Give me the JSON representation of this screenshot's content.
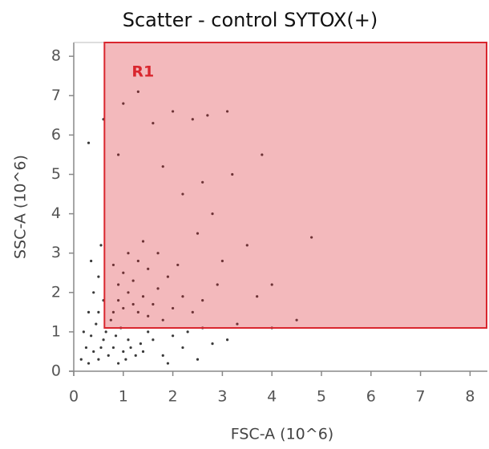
{
  "chart_data": {
    "type": "scatter",
    "title": "Scatter - control SYTOX(+)",
    "x_label": "FSC-A (10^6)",
    "y_label": "SSC-A (10^6)",
    "xlim": [
      0,
      8.35
    ],
    "ylim": [
      0,
      8.35
    ],
    "xticks": [
      0,
      1,
      2,
      3,
      4,
      5,
      6,
      7,
      8
    ],
    "yticks": [
      0,
      1,
      2,
      3,
      4,
      5,
      6,
      7,
      8
    ],
    "series": [
      {
        "color": "#3a3a3a",
        "x": [
          0.3,
          0.4,
          0.5,
          0.6,
          0.7,
          0.8,
          0.9,
          1.0,
          1.1,
          0.35,
          0.45,
          0.55,
          0.65,
          0.75,
          0.85,
          0.95,
          1.05,
          1.15,
          1.25,
          1.35,
          0.25,
          0.15,
          0.2,
          0.5,
          0.6,
          0.4,
          0.3,
          0.5,
          0.35,
          0.55,
          0.8,
          0.9,
          1.0,
          1.1,
          1.2,
          1.3,
          1.4,
          0.9,
          1.0,
          1.2,
          1.5,
          1.6,
          1.7,
          1.8,
          2.0,
          2.2,
          1.3,
          1.5,
          1.1,
          0.8,
          1.9,
          2.4,
          2.6,
          2.1,
          1.4,
          1.7,
          1.4,
          1.6,
          1.8,
          2.0,
          2.2,
          2.5,
          2.8,
          1.5,
          1.9,
          2.3,
          2.5,
          3.0,
          2.8,
          3.5,
          2.2,
          3.2,
          3.8,
          4.8,
          1.3,
          2.0,
          2.4,
          3.1,
          2.7,
          1.6,
          1.0,
          0.9,
          1.8,
          2.6,
          4.0,
          3.7,
          4.5,
          3.3,
          2.9,
          0.3,
          0.6,
          4.0,
          3.1,
          2.6
        ],
        "y": [
          0.2,
          0.5,
          0.3,
          0.8,
          0.4,
          0.6,
          0.2,
          0.5,
          0.8,
          0.9,
          1.2,
          0.6,
          1.0,
          1.3,
          0.9,
          1.1,
          0.3,
          0.6,
          0.4,
          0.7,
          0.6,
          0.3,
          1.0,
          1.5,
          1.8,
          2.0,
          1.5,
          2.4,
          2.8,
          3.2,
          1.5,
          1.8,
          1.6,
          2.0,
          1.7,
          1.5,
          1.9,
          2.2,
          2.5,
          2.3,
          1.4,
          1.7,
          2.1,
          1.3,
          1.6,
          1.9,
          2.8,
          2.6,
          3.0,
          2.7,
          2.4,
          1.5,
          1.8,
          2.7,
          3.3,
          3.0,
          0.5,
          0.8,
          0.4,
          0.9,
          0.6,
          0.3,
          0.7,
          1.0,
          0.2,
          1.0,
          3.5,
          2.8,
          4.0,
          3.2,
          4.5,
          5.0,
          5.5,
          3.4,
          7.1,
          6.6,
          6.4,
          6.6,
          6.5,
          6.3,
          6.8,
          5.5,
          5.2,
          4.8,
          2.2,
          1.9,
          1.3,
          1.2,
          2.2,
          5.8,
          6.4,
          1.1,
          0.8,
          1.1
        ]
      }
    ],
    "gate": {
      "label": "R1",
      "xlim": [
        0.62,
        8.35
      ],
      "ylim": [
        1.1,
        8.35
      ],
      "color": "#d9262e"
    }
  }
}
